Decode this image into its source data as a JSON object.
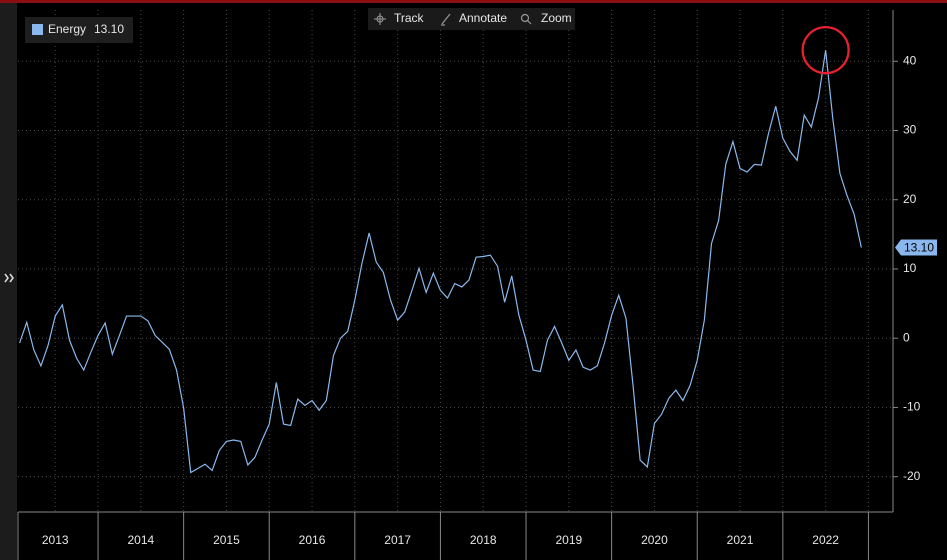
{
  "chart_data": {
    "type": "line",
    "toolbar": [
      "Track",
      "Annotate",
      "Zoom"
    ],
    "series": [
      {
        "name": "Energy",
        "color": "#8ab8ee",
        "last_label": "13.10",
        "x": [
          2013.083,
          2013.167,
          2013.25,
          2013.333,
          2013.417,
          2013.5,
          2013.583,
          2013.667,
          2013.75,
          2013.833,
          2013.917,
          2014,
          2014.083,
          2014.167,
          2014.25,
          2014.333,
          2014.417,
          2014.5,
          2014.583,
          2014.667,
          2014.75,
          2014.833,
          2014.917,
          2015,
          2015.083,
          2015.167,
          2015.25,
          2015.333,
          2015.417,
          2015.5,
          2015.583,
          2015.667,
          2015.75,
          2015.833,
          2015.917,
          2016,
          2016.083,
          2016.167,
          2016.25,
          2016.333,
          2016.417,
          2016.5,
          2016.583,
          2016.667,
          2016.75,
          2016.833,
          2016.917,
          2017,
          2017.083,
          2017.167,
          2017.25,
          2017.333,
          2017.417,
          2017.5,
          2017.583,
          2017.667,
          2017.75,
          2017.833,
          2017.917,
          2018,
          2018.083,
          2018.167,
          2018.25,
          2018.333,
          2018.417,
          2018.5,
          2018.583,
          2018.667,
          2018.75,
          2018.833,
          2018.917,
          2019,
          2019.083,
          2019.167,
          2019.25,
          2019.333,
          2019.417,
          2019.5,
          2019.583,
          2019.667,
          2019.75,
          2019.833,
          2019.917,
          2020,
          2020.083,
          2020.167,
          2020.25,
          2020.333,
          2020.417,
          2020.5,
          2020.583,
          2020.667,
          2020.75,
          2020.833,
          2020.917,
          2021,
          2021.083,
          2021.167,
          2021.25,
          2021.333,
          2021.417,
          2021.5,
          2021.583,
          2021.667,
          2021.75,
          2021.833,
          2021.917,
          2022,
          2022.083,
          2022.167,
          2022.25,
          2022.333,
          2022.417,
          2022.5,
          2022.583,
          2022.667,
          2022.75,
          2022.833,
          2022.917
        ],
        "values": [
          -0.7,
          2.3,
          -1.7,
          -4,
          -1,
          3.2,
          4.8,
          -0.3,
          -2.9,
          -4.6,
          -2,
          0.4,
          2.2,
          -2.3,
          0.4,
          3.2,
          3.2,
          3.2,
          2.5,
          0.4,
          -0.6,
          -1.6,
          -4.6,
          -10.1,
          -19.4,
          -18.8,
          -18.2,
          -19.1,
          -16.2,
          -14.9,
          -14.7,
          -14.9,
          -18.3,
          -17.2,
          -14.7,
          -12.4,
          -6.4,
          -12.4,
          -12.6,
          -8.8,
          -9.7,
          -9,
          -10.4,
          -9,
          -2.5,
          0,
          1,
          5.5,
          10.8,
          15.2,
          11,
          9.5,
          5.5,
          2.6,
          3.8,
          6.9,
          10.1,
          6.6,
          9.4,
          6.9,
          5.8,
          7.9,
          7.4,
          8.4,
          11.7,
          11.8,
          12,
          10.4,
          5.2,
          9,
          3.3,
          -0.3,
          -4.6,
          -4.8,
          -0.3,
          1.7,
          -0.7,
          -3.2,
          -1.7,
          -4.2,
          -4.6,
          -4,
          -0.7,
          3.3,
          6.2,
          2.9,
          -6.8,
          -17.6,
          -18.6,
          -12.3,
          -11,
          -8.7,
          -7.5,
          -9,
          -6.8,
          -3.2,
          2.6,
          13.7,
          17,
          25.1,
          28.4,
          24.5,
          24,
          25.1,
          25,
          29.6,
          33.5,
          28.9,
          27,
          25.7,
          32.2,
          30.5,
          34.7,
          41.6,
          31.8,
          23.8,
          20.6,
          17.9,
          13.1
        ]
      }
    ],
    "xlim": [
      2013.065,
      2023.287
    ],
    "xseparators": [
      2014,
      2015,
      2016,
      2017,
      2018,
      2019,
      2020,
      2021,
      2022,
      2023
    ],
    "xticks": [
      {
        "value": 2013.5,
        "label": "2013"
      },
      {
        "value": 2014.5,
        "label": "2014"
      },
      {
        "value": 2015.5,
        "label": "2015"
      },
      {
        "value": 2016.5,
        "label": "2016"
      },
      {
        "value": 2017.5,
        "label": "2017"
      },
      {
        "value": 2018.5,
        "label": "2018"
      },
      {
        "value": 2019.5,
        "label": "2019"
      },
      {
        "value": 2020.5,
        "label": "2020"
      },
      {
        "value": 2021.5,
        "label": "2021"
      },
      {
        "value": 2022.5,
        "label": "2022"
      }
    ],
    "ylim": [
      -25.1,
      47.4
    ],
    "yticks": [
      -20,
      -10,
      0,
      10,
      20,
      30,
      40
    ],
    "grid": true,
    "highlight_max": true,
    "highlight_color": "#e8212f"
  }
}
